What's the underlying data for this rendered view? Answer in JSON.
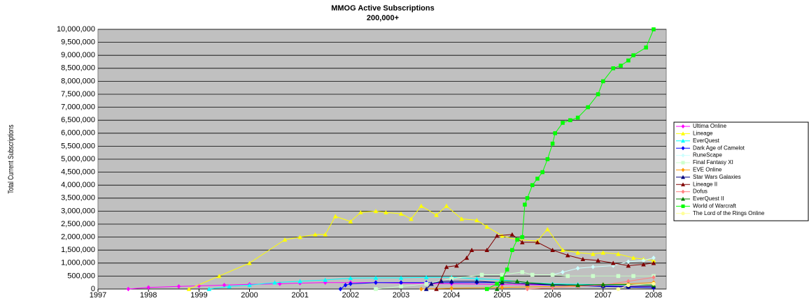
{
  "chart_data": {
    "type": "line",
    "title": "MMOG Active Subscriptions",
    "subtitle": "200,000+",
    "y_label": "Total Current Subscriptions",
    "xlim": [
      1997,
      2008.25
    ],
    "xticks": [
      1997,
      1998,
      1999,
      2000,
      2001,
      2002,
      2003,
      2004,
      2005,
      2006,
      2007,
      2008
    ],
    "ylim": [
      0,
      10000000
    ],
    "yticks": [
      0,
      {
        "value": 500000,
        "label": "500,000"
      },
      {
        "value": 1000000,
        "label": "1,000,000"
      },
      {
        "value": 1500000,
        "label": "1,500,000"
      },
      {
        "value": 2000000,
        "label": "2,000,000"
      },
      {
        "value": 2500000,
        "label": "2,500,000"
      },
      {
        "value": 3000000,
        "label": "3,000,000"
      },
      {
        "value": 3500000,
        "label": "3,500,000"
      },
      {
        "value": 4000000,
        "label": "4,000,000"
      },
      {
        "value": 4500000,
        "label": "4,500,000"
      },
      {
        "value": 5000000,
        "label": "5,000,000"
      },
      {
        "value": 5500000,
        "label": "5,500,000"
      },
      {
        "value": 6000000,
        "label": "6,000,000"
      },
      {
        "value": 6500000,
        "label": "6,500,000"
      },
      {
        "value": 7000000,
        "label": "7,000,000"
      },
      {
        "value": 7500000,
        "label": "7,500,000"
      },
      {
        "value": 8000000,
        "label": "8,000,000"
      },
      {
        "value": 8500000,
        "label": "8,500,000"
      },
      {
        "value": 9000000,
        "label": "9,000,000"
      },
      {
        "value": 9500000,
        "label": "9,500,000"
      },
      {
        "value": 10000000,
        "label": "10,000,000"
      }
    ],
    "grid": true,
    "legend": "right",
    "series": [
      {
        "name": "Ultima Online",
        "color": "#ff00ff",
        "marker": "diamond",
        "x": [
          1997.6,
          1998,
          1998.6,
          1999,
          1999.5,
          2000,
          2000.6,
          2001,
          2001.5,
          2002,
          2002.5,
          2003,
          2004,
          2005,
          2006,
          2007,
          2008
        ],
        "values": [
          0,
          60000,
          100000,
          120000,
          150000,
          180000,
          200000,
          230000,
          250000,
          250000,
          250000,
          225000,
          200000,
          175000,
          150000,
          120000,
          100000
        ]
      },
      {
        "name": "Lineage",
        "color": "#ffff00",
        "marker": "triangle",
        "x": [
          1998.8,
          1999.4,
          2000,
          2000.7,
          2001,
          2001.3,
          2001.5,
          2001.7,
          2002,
          2002.2,
          2002.5,
          2002.7,
          2003,
          2003.2,
          2003.4,
          2003.7,
          2003.9,
          2004.2,
          2004.5,
          2004.7,
          2005,
          2005.3,
          2005.7,
          2005.9,
          2006.2,
          2006.5,
          2006.8,
          2007,
          2007.3,
          2007.6,
          2007.8,
          2008
        ],
        "values": [
          0,
          500000,
          1000000,
          1900000,
          2000000,
          2100000,
          2100000,
          2800000,
          2600000,
          2950000,
          3000000,
          2950000,
          2900000,
          2700000,
          3200000,
          2850000,
          3200000,
          2700000,
          2650000,
          2400000,
          2050000,
          1900000,
          1850000,
          2300000,
          1500000,
          1400000,
          1350000,
          1400000,
          1350000,
          1200000,
          1150000,
          1100000
        ]
      },
      {
        "name": "EverQuest",
        "color": "#00ffff",
        "marker": "triangle",
        "x": [
          1999.2,
          1999.6,
          2000,
          2000.5,
          2001,
          2001.5,
          2002,
          2002.5,
          2003,
          2003.5,
          2004,
          2004.5,
          2005,
          2005.5,
          2006,
          2006.5,
          2007,
          2007.5,
          2008
        ],
        "values": [
          0,
          100000,
          150000,
          250000,
          300000,
          350000,
          420000,
          430000,
          430000,
          450000,
          450000,
          400000,
          350000,
          250000,
          200000,
          180000,
          170000,
          160000,
          150000
        ]
      },
      {
        "name": "Dark Age of Camelot",
        "color": "#0000ff",
        "marker": "diamond",
        "x": [
          2001.8,
          2001.9,
          2002,
          2002.5,
          2003,
          2003.5,
          2004,
          2004.5,
          2005,
          2005.5,
          2006,
          2006.5,
          2007,
          2007.5,
          2008
        ],
        "values": [
          0,
          150000,
          200000,
          250000,
          250000,
          250000,
          250000,
          250000,
          250000,
          200000,
          150000,
          125000,
          100000,
          75000,
          50000
        ]
      },
      {
        "name": "RuneScape",
        "color": "#ccffff",
        "marker": "diamond",
        "x": [
          2006,
          2006.2,
          2006.5,
          2006.8,
          2007.2,
          2007.5,
          2007.8,
          2008
        ],
        "values": [
          550000,
          650000,
          800000,
          850000,
          900000,
          1050000,
          1100000,
          1200000
        ]
      },
      {
        "name": "Final Fantasy XI",
        "color": "#ccffcc",
        "marker": "square",
        "x": [
          2002.5,
          2003,
          2003.5,
          2004,
          2004.6,
          2005,
          2005.4,
          2005.6,
          2006,
          2006.3,
          2006.8,
          2007.3,
          2007.6,
          2008
        ],
        "values": [
          0,
          100000,
          200000,
          400000,
          550000,
          550000,
          650000,
          550000,
          550000,
          500000,
          500000,
          500000,
          500000,
          500000
        ]
      },
      {
        "name": "EVE Online",
        "color": "#ff9900",
        "marker": "diamond",
        "x": [
          2003.4,
          2004,
          2005,
          2005.5,
          2006,
          2006.5,
          2007,
          2007.5,
          2008
        ],
        "values": [
          0,
          30000,
          60000,
          80000,
          100000,
          130000,
          170000,
          200000,
          250000
        ]
      },
      {
        "name": "Star Wars Galaxies",
        "color": "#000080",
        "marker": "triangle",
        "x": [
          2003.5,
          2003.6,
          2003.8,
          2004,
          2004.5,
          2005,
          2005.5,
          2006,
          2006.5,
          2007,
          2007.5,
          2008
        ],
        "values": [
          0,
          200000,
          300000,
          300000,
          300000,
          250000,
          200000,
          175000,
          150000,
          125000,
          100000,
          100000
        ]
      },
      {
        "name": "Lineage II",
        "color": "#800000",
        "marker": "triangle",
        "x": [
          2003.7,
          2003.9,
          2004.1,
          2004.3,
          2004.4,
          2004.7,
          2004.9,
          2005.2,
          2005.4,
          2005.7,
          2006,
          2006.3,
          2006.6,
          2006.9,
          2007.2,
          2007.5,
          2007.8,
          2008
        ],
        "values": [
          0,
          850000,
          900000,
          1200000,
          1500000,
          1500000,
          2050000,
          2100000,
          1800000,
          1800000,
          1500000,
          1300000,
          1150000,
          1100000,
          1000000,
          900000,
          950000,
          1000000
        ]
      },
      {
        "name": "Dofus",
        "color": "#ff8080",
        "marker": "diamond",
        "x": [
          2005.5,
          2006,
          2006.5,
          2007,
          2007.5,
          2008
        ],
        "values": [
          0,
          50000,
          100000,
          150000,
          300000,
          450000
        ]
      },
      {
        "name": "EverQuest II",
        "color": "#008000",
        "marker": "triangle",
        "x": [
          2004.9,
          2005,
          2005.3,
          2005.5,
          2006,
          2006.5,
          2007,
          2007.5,
          2008
        ],
        "values": [
          0,
          300000,
          300000,
          250000,
          175000,
          150000,
          175000,
          175000,
          150000
        ]
      },
      {
        "name": "World of Warcraft",
        "color": "#00ff00",
        "marker": "square",
        "x": [
          2004.7,
          2004.9,
          2005,
          2005.1,
          2005.2,
          2005.3,
          2005.4,
          2005.45,
          2005.5,
          2005.6,
          2005.7,
          2005.8,
          2005.9,
          2006,
          2006.05,
          2006.2,
          2006.35,
          2006.5,
          2006.7,
          2006.9,
          2007,
          2007.2,
          2007.35,
          2007.5,
          2007.6,
          2007.85,
          2008
        ],
        "values": [
          0,
          200000,
          400000,
          750000,
          1500000,
          1900000,
          2000000,
          3250000,
          3500000,
          4000000,
          4250000,
          4500000,
          5000000,
          5600000,
          6000000,
          6400000,
          6500000,
          6600000,
          7000000,
          7500000,
          8000000,
          8500000,
          8600000,
          8800000,
          9000000,
          9300000,
          10000000
        ]
      },
      {
        "name": "The Lord of the Rings Online",
        "color": "#ffff99",
        "marker": "circle",
        "x": [
          2007.3,
          2007.5,
          2008
        ],
        "values": [
          0,
          150000,
          200000
        ]
      }
    ]
  }
}
